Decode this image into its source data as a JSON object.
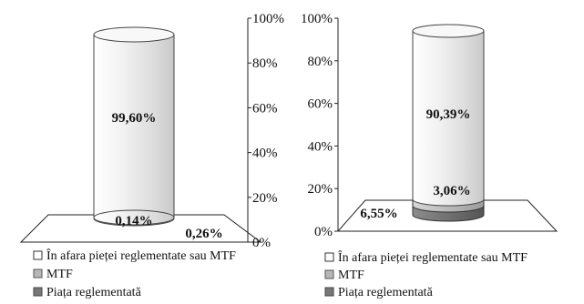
{
  "chart_data": [
    {
      "type": "bar",
      "style": "3d-cylinder-stacked-100",
      "categories": [
        ""
      ],
      "series": [
        {
          "name": "În afara pieței reglementate sau MTF",
          "values": [
            99.6
          ],
          "label": "99,60%",
          "color": "#e8e8e8"
        },
        {
          "name": "MTF",
          "values": [
            0.14
          ],
          "label": "0,14%",
          "color": "#b8b8b8"
        },
        {
          "name": "Piața reglementată",
          "values": [
            0.26
          ],
          "label": "0,26%",
          "color": "#777777"
        }
      ],
      "yticks": [
        "0%",
        "20%",
        "40%",
        "60%",
        "80%",
        "100%"
      ],
      "ylim": [
        0,
        100
      ],
      "legend_position": "bottom-left"
    },
    {
      "type": "bar",
      "style": "3d-cylinder-stacked-100",
      "categories": [
        ""
      ],
      "series": [
        {
          "name": "În afara pieței reglementate sau MTF",
          "values": [
            90.39
          ],
          "label": "90,39%",
          "color": "#e8e8e8"
        },
        {
          "name": "MTF",
          "values": [
            3.06
          ],
          "label": "3,06%",
          "color": "#b8b8b8"
        },
        {
          "name": "Piața reglementată",
          "values": [
            6.55
          ],
          "label": "6,55%",
          "color": "#777777"
        }
      ],
      "yticks": [
        "0%",
        "20%",
        "40%",
        "60%",
        "80%",
        "100%"
      ],
      "ylim": [
        0,
        100
      ],
      "legend_position": "bottom-right"
    }
  ]
}
